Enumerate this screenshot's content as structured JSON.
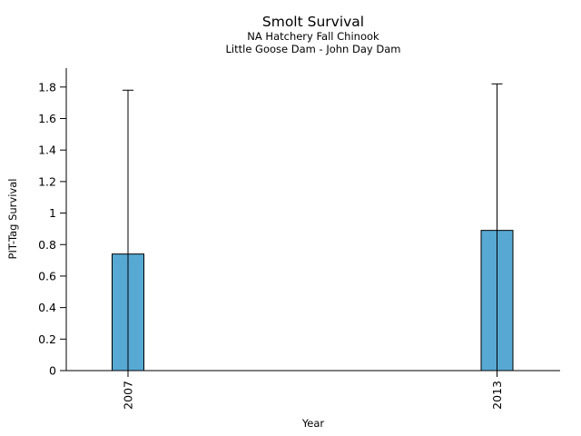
{
  "page": {
    "background": "#ffffff"
  },
  "chart_data": {
    "type": "bar",
    "title": "Smolt Survival",
    "subtitle1": "NA Hatchery Fall Chinook",
    "subtitle2": "Little Goose Dam - John Day Dam",
    "xlabel": "Year",
    "ylabel": "PIT-Tag Survival",
    "categories": [
      "2007",
      "2013"
    ],
    "values": [
      0.74,
      0.89
    ],
    "error_upper": [
      1.78,
      1.82
    ],
    "error_lower": [
      0,
      0
    ],
    "yticks": [
      0,
      0.2,
      0.4,
      0.6,
      0.8,
      1,
      1.2,
      1.4,
      1.6,
      1.8
    ],
    "ytick_labels": [
      "0",
      "0.2",
      "0.4",
      "0.6",
      "0.8",
      "1",
      "1.2",
      "1.4",
      "1.6",
      "1.8"
    ],
    "ylim": [
      0,
      1.92
    ],
    "grid": false,
    "legend": null,
    "x_tick_label_rotation": 90,
    "bar_color": "#57A9D3",
    "bar_edge_color": "#000000",
    "axis_color": "#000000",
    "text_color": "#000000"
  }
}
